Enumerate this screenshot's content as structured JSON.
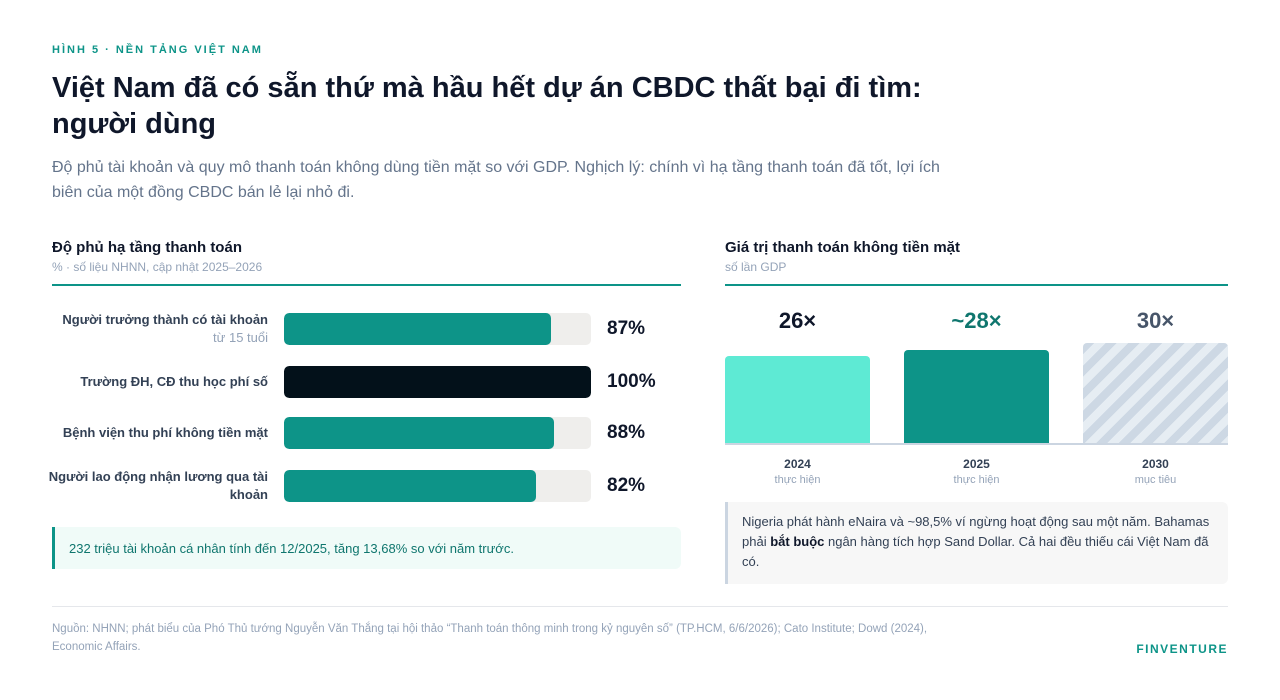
{
  "header": {
    "eyebrow": "HÌNH 5 · NỀN TẢNG VIỆT NAM",
    "title": "Việt Nam đã có sẵn thứ mà hầu hết dự án CBDC thất bại đi tìm: người dùng",
    "subtitle": "Độ phủ tài khoản và quy mô thanh toán không dùng tiền mặt so với GDP. Nghịch lý: chính vì hạ tầng thanh toán đã tốt, lợi ích biên của một đồng CBDC bán lẻ lại nhỏ đi."
  },
  "left_panel": {
    "title": "Độ phủ hạ tầng thanh toán",
    "note": "% · số liệu NHNN, cập nhật 2025–2026",
    "callout": "232 triệu tài khoản cá nhân tính đến 12/2025, tăng 13,68% so với năm trước."
  },
  "right_panel": {
    "title": "Giá trị thanh toán không tiền mặt",
    "note": "số lần GDP",
    "callout_pre": "Nigeria phát hành eNaira và ~98,5% ví ngừng hoạt động sau một năm. Bahamas phải ",
    "callout_bold": "bắt buộc",
    "callout_post": " ngân hàng tích hợp Sand Dollar. Cả hai đều thiếu cái Việt Nam đã có."
  },
  "footer": {
    "source": "Nguồn: NHNN; phát biểu của Phó Thủ tướng Nguyễn Văn Thắng tại hội thảo “Thanh toán thông minh trong kỷ nguyên số” (TP.HCM, 6/6/2026); Cato Institute; Dowd (2024), Economic Affairs.",
    "brand": "FINVENTURE"
  },
  "colors": {
    "accent": "#0d9488",
    "dark": "#03111a",
    "light_teal": "#5eead4",
    "target_hatch": "#cdd8e4"
  },
  "chart_data": [
    {
      "type": "bar",
      "orientation": "horizontal",
      "categories": [
        "Người trưởng thành có tài khoản",
        "Trường ĐH, CĐ thu học phí số",
        "Bệnh viện thu phí không tiền mặt",
        "Người lao động nhận lương qua tài khoản"
      ],
      "category_sublabels": [
        "từ 15 tuổi",
        "",
        "",
        ""
      ],
      "values": [
        87,
        100,
        88,
        82
      ],
      "value_labels": [
        "87%",
        "100%",
        "88%",
        "82%"
      ],
      "highlight": [
        false,
        true,
        false,
        false
      ],
      "xlim": [
        0,
        100
      ]
    },
    {
      "type": "bar",
      "orientation": "vertical",
      "categories": [
        "2024",
        "2025",
        "2030"
      ],
      "category_sublabels": [
        "thực hiện",
        "thực hiện",
        "mục tiêu"
      ],
      "values": [
        26,
        28,
        30
      ],
      "value_labels": [
        "26×",
        "~28×",
        "30×"
      ],
      "value_label_colors": [
        "#0f172a",
        "#0f766e",
        "#475569"
      ],
      "bar_styles": [
        "light",
        "solid",
        "hatched"
      ],
      "ylim": [
        0,
        30
      ]
    }
  ]
}
